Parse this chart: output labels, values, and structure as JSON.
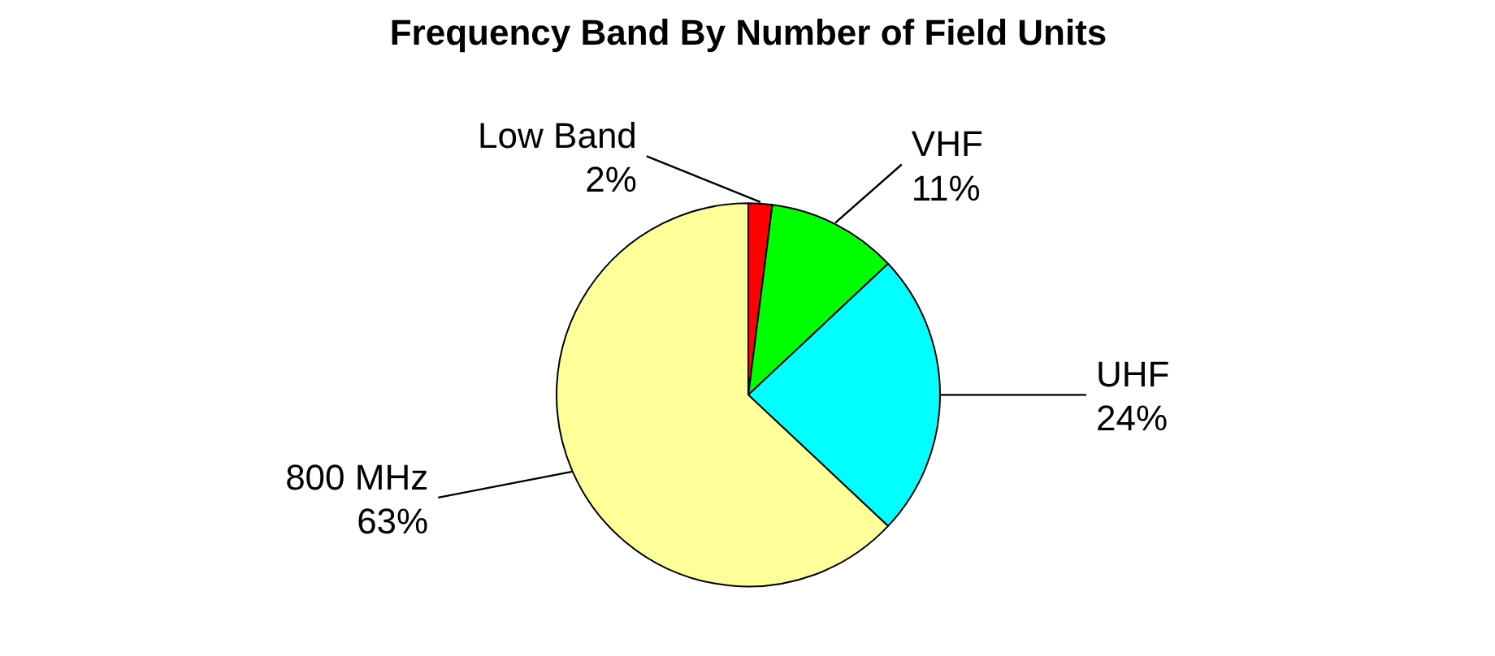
{
  "chart_data": {
    "type": "pie",
    "title": "Frequency Band By Number of Field Units",
    "categories": [
      "Low Band",
      "VHF",
      "UHF",
      "800 MHz"
    ],
    "values": [
      2,
      11,
      24,
      63
    ],
    "value_labels": [
      "2%",
      "11%",
      "24%",
      "63%"
    ],
    "colors": [
      "#ff0000",
      "#00ff00",
      "#00ffff",
      "#ffff99"
    ]
  }
}
